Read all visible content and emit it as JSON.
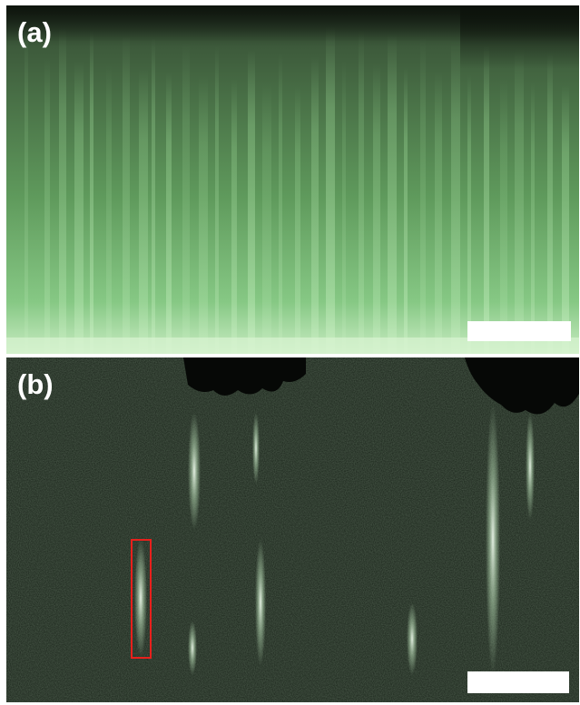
{
  "figure": {
    "panel_a": {
      "label": "(a)",
      "tint": "#8fcf8a",
      "background": "#1d2a1d"
    },
    "panel_b": {
      "label": "(b)",
      "tint": "#c9e8c8",
      "background": "#0e130e",
      "roi_color": "#e8201c"
    },
    "scale_bar_color": "#ffffff"
  }
}
